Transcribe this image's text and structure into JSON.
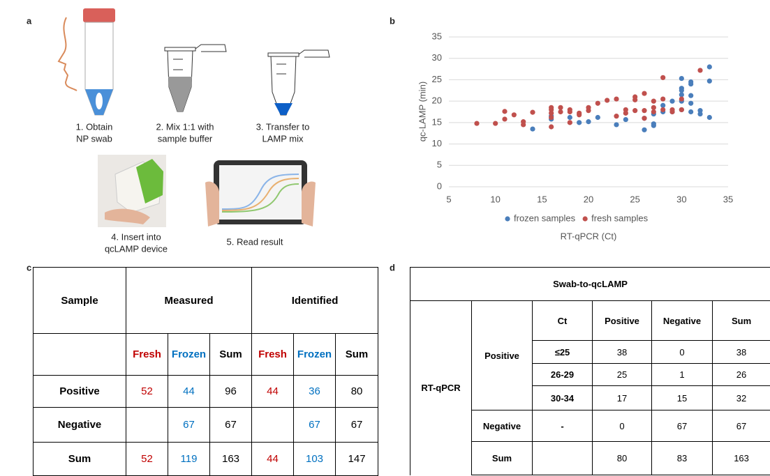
{
  "panel_labels": [
    "a",
    "b",
    "c",
    "d"
  ],
  "panel_a": {
    "steps": [
      {
        "caption": [
          "1. Obtain",
          "NP swab"
        ]
      },
      {
        "caption": [
          "2. Mix 1:1 with",
          "sample buffer"
        ]
      },
      {
        "caption": [
          "3. Transfer to",
          "LAMP mix"
        ]
      },
      {
        "caption": [
          "4. Insert into",
          "qcLAMP device"
        ]
      },
      {
        "caption": [
          "5. Read result"
        ]
      }
    ]
  },
  "chart_data": {
    "type": "scatter",
    "x_label": "RT-qPCR (Ct)",
    "y_label": "qc-LAMP (min)",
    "xlim": [
      5,
      35
    ],
    "xticks": [
      5,
      10,
      15,
      20,
      25,
      30,
      35
    ],
    "ylim": [
      0,
      35
    ],
    "yticks": [
      0,
      5,
      10,
      15,
      20,
      25,
      30,
      35
    ],
    "grid": true,
    "legend": "bottom",
    "series": [
      {
        "name": "frozen samples",
        "color": "#4a7ebb",
        "x": [
          14,
          16,
          16,
          18,
          19,
          20,
          21,
          23,
          24,
          26,
          26,
          27,
          27,
          27,
          28,
          28,
          29,
          29,
          30,
          30,
          30,
          30,
          30,
          30,
          31,
          31,
          31,
          31,
          31,
          32,
          32,
          33,
          33,
          33
        ],
        "values": [
          13.5,
          15.8,
          16.5,
          16.2,
          15,
          15.2,
          16.2,
          14.5,
          15.7,
          13.3,
          16,
          14.3,
          14.7,
          17,
          17.5,
          19,
          17.5,
          20,
          18,
          20,
          21.5,
          22.5,
          23,
          25.3,
          17.5,
          19.5,
          21.3,
          24,
          24.5,
          17,
          17.8,
          16.2,
          24.7,
          28
        ]
      },
      {
        "name": "fresh samples",
        "color": "#c0504d",
        "x": [
          8,
          10,
          11,
          11,
          12,
          13,
          13,
          14,
          16,
          16,
          16,
          16,
          16,
          17,
          17,
          18,
          18,
          18,
          19,
          19,
          20,
          20,
          21,
          22,
          23,
          23,
          24,
          24,
          25,
          25,
          25,
          26,
          26,
          26,
          27,
          27,
          27,
          28,
          28,
          28,
          29,
          29,
          30,
          30,
          32
        ],
        "values": [
          14.8,
          14.8,
          15.8,
          17.6,
          16.8,
          14.5,
          15.2,
          17.4,
          14,
          16.2,
          17.2,
          18,
          18.5,
          17.5,
          18.5,
          15,
          17.5,
          18,
          16.8,
          17.2,
          17.8,
          18.5,
          19.5,
          20.2,
          16.5,
          20.5,
          17.2,
          18,
          17.8,
          20.3,
          21,
          16,
          17.8,
          21.8,
          17.5,
          18.5,
          20,
          18,
          20.5,
          25.5,
          17.5,
          18,
          18,
          20.5,
          27.2
        ]
      }
    ]
  },
  "panel_c": {
    "header": [
      "Sample",
      "Measured",
      "Identified"
    ],
    "subheader": [
      "Fresh",
      "Frozen",
      "Sum",
      "Fresh",
      "Frozen",
      "Sum"
    ],
    "rows": [
      [
        "Positive",
        52,
        44,
        96,
        44,
        36,
        80
      ],
      [
        "Negative",
        null,
        67,
        67,
        null,
        67,
        67
      ],
      [
        "Sum",
        52,
        119,
        163,
        44,
        103,
        147
      ]
    ]
  },
  "panel_d": {
    "title": "Swab-to-qcLAMP",
    "row_header": "RT-qPCR",
    "columns": [
      "Ct",
      "Positive",
      "Negative",
      "Sum"
    ],
    "rows": [
      [
        "Positive",
        "≤25",
        38,
        0,
        38
      ],
      [
        "Positive",
        "26-29",
        25,
        1,
        26
      ],
      [
        "Positive",
        "30-34",
        17,
        15,
        32
      ],
      [
        "Negative",
        "-",
        0,
        67,
        67
      ],
      [
        "Sum",
        null,
        80,
        83,
        163
      ]
    ]
  }
}
